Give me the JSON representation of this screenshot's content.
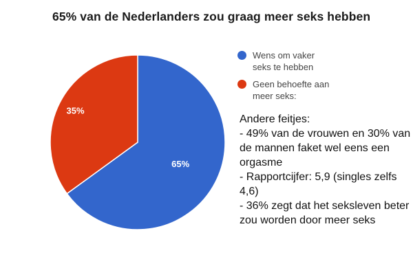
{
  "title": "65% van de Nederlanders zou graag meer seks hebben",
  "legend": {
    "items": [
      {
        "label": "Wens om vaker\nseks te hebben",
        "color": "#3366cc"
      },
      {
        "label": "Geen behoefte aan\nmeer seks:",
        "color": "#dc3912"
      }
    ]
  },
  "facts": {
    "heading": "Andere feitjes:",
    "items": [
      "- 49% van de vrouwen en 30% van de mannen faket wel eens een orgasme",
      "- Rapportcijfer: 5,9 (singles zelfs 4,6)",
      "- 36% zegt dat het seksleven beter zou worden door meer seks"
    ]
  },
  "chart_data": {
    "type": "pie",
    "title": "65% van de Nederlanders zou graag meer seks hebben",
    "categories": [
      "Wens om vaker seks te hebben",
      "Geen behoefte aan meer seks:"
    ],
    "values": [
      65,
      35
    ],
    "slice_labels": [
      "65%",
      "35%"
    ],
    "colors": [
      "#3366cc",
      "#dc3912"
    ],
    "label_color": "#ffffff",
    "legend_position": "right",
    "start_angle_deg": 0,
    "direction": "clockwise"
  }
}
